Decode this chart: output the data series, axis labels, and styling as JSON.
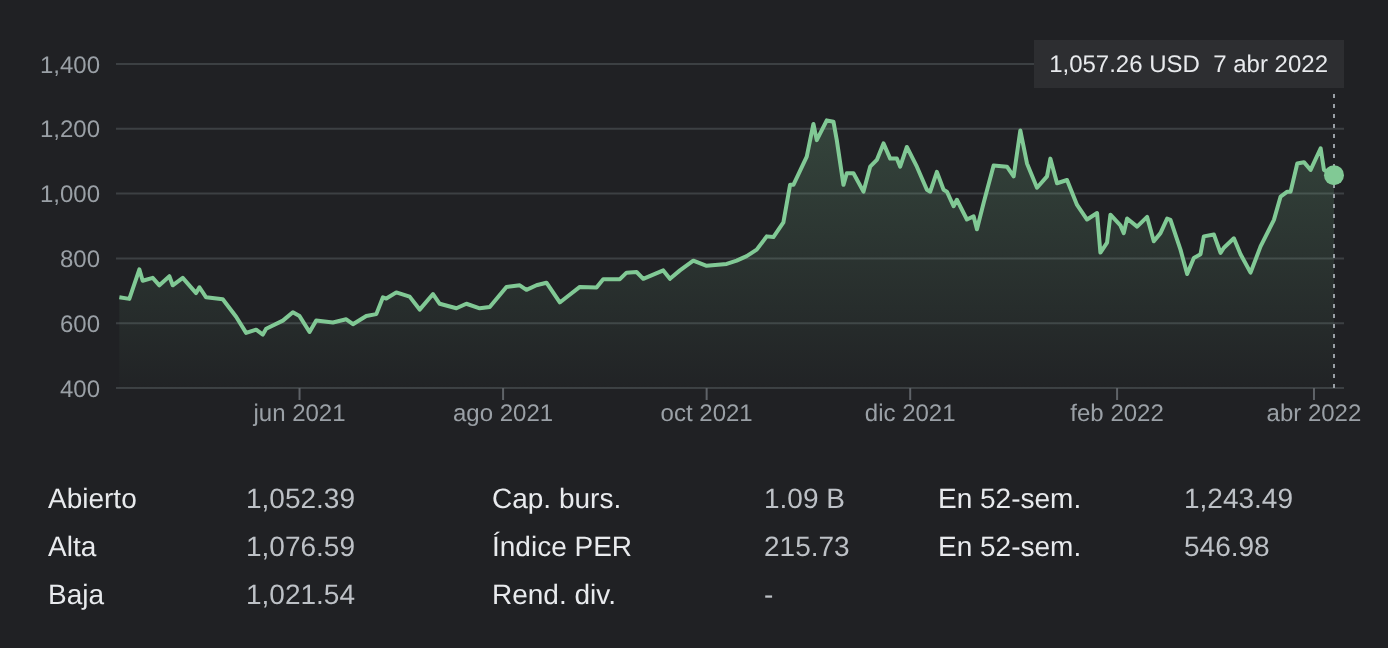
{
  "chart_data": {
    "type": "area",
    "x": [
      "2021-04-08",
      "2021-04-11",
      "2021-04-14",
      "2021-04-15",
      "2021-04-18",
      "2021-04-20",
      "2021-04-23",
      "2021-04-24",
      "2021-04-27",
      "2021-05-01",
      "2021-05-02",
      "2021-05-04",
      "2021-05-09",
      "2021-05-13",
      "2021-05-16",
      "2021-05-19",
      "2021-05-21",
      "2021-05-22",
      "2021-05-27",
      "2021-05-30",
      "2021-06-01",
      "2021-06-04",
      "2021-06-06",
      "2021-06-11",
      "2021-06-15",
      "2021-06-17",
      "2021-06-21",
      "2021-06-24",
      "2021-06-26",
      "2021-06-27",
      "2021-06-30",
      "2021-07-04",
      "2021-07-07",
      "2021-07-11",
      "2021-07-13",
      "2021-07-18",
      "2021-07-21",
      "2021-07-25",
      "2021-07-28",
      "2021-08-02",
      "2021-08-06",
      "2021-08-08",
      "2021-08-11",
      "2021-08-14",
      "2021-08-18",
      "2021-08-20",
      "2021-08-24",
      "2021-08-29",
      "2021-08-31",
      "2021-09-05",
      "2021-09-07",
      "2021-09-10",
      "2021-09-12",
      "2021-09-18",
      "2021-09-20",
      "2021-09-23",
      "2021-09-27",
      "2021-10-01",
      "2021-10-07",
      "2021-10-10",
      "2021-10-13",
      "2021-10-16",
      "2021-10-19",
      "2021-10-21",
      "2021-10-24",
      "2021-10-26",
      "2021-10-27",
      "2021-10-31",
      "2021-11-02",
      "2021-11-03",
      "2021-11-06",
      "2021-11-08",
      "2021-11-09",
      "2021-11-11",
      "2021-11-12",
      "2021-11-14",
      "2021-11-17",
      "2021-11-19",
      "2021-11-21",
      "2021-11-23",
      "2021-11-25",
      "2021-11-27",
      "2021-11-28",
      "2021-11-30",
      "2021-12-03",
      "2021-12-06",
      "2021-12-07",
      "2021-12-09",
      "2021-12-11",
      "2021-12-12",
      "2021-12-14",
      "2021-12-15",
      "2021-12-18",
      "2021-12-20",
      "2021-12-21",
      "2021-12-23",
      "2021-12-26",
      "2021-12-30",
      "2022-01-01",
      "2022-01-03",
      "2022-01-05",
      "2022-01-08",
      "2022-01-11",
      "2022-01-12",
      "2022-01-14",
      "2022-01-17",
      "2022-01-20",
      "2022-01-23",
      "2022-01-26",
      "2022-01-27",
      "2022-01-29",
      "2022-01-30",
      "2022-02-02",
      "2022-02-03",
      "2022-02-04",
      "2022-02-07",
      "2022-02-10",
      "2022-02-12",
      "2022-02-14",
      "2022-02-16",
      "2022-02-17",
      "2022-02-20",
      "2022-02-22",
      "2022-02-24",
      "2022-02-26",
      "2022-02-27",
      "2022-03-02",
      "2022-03-04",
      "2022-03-05",
      "2022-03-08",
      "2022-03-10",
      "2022-03-13",
      "2022-03-16",
      "2022-03-20",
      "2022-03-22",
      "2022-03-24",
      "2022-03-25",
      "2022-03-27",
      "2022-03-29",
      "2022-03-31",
      "2022-04-03",
      "2022-04-04",
      "2022-04-07"
    ],
    "series": [
      {
        "color": "#81c995",
        "values": [
          680,
          675,
          766,
          731,
          740,
          717,
          745,
          717,
          740,
          693,
          711,
          680,
          674,
          620,
          570,
          580,
          565,
          583,
          608,
          634,
          622,
          573,
          608,
          602,
          612,
          597,
          622,
          628,
          680,
          676,
          695,
          682,
          642,
          690,
          660,
          646,
          660,
          646,
          650,
          712,
          717,
          703,
          717,
          725,
          664,
          680,
          712,
          710,
          736,
          736,
          756,
          758,
          737,
          763,
          737,
          763,
          793,
          777,
          783,
          793,
          807,
          827,
          868,
          866,
          911,
          1027,
          1027,
          1114,
          1215,
          1165,
          1226,
          1222,
          1165,
          1027,
          1063,
          1063,
          1006,
          1083,
          1104,
          1155,
          1108,
          1108,
          1083,
          1144,
          1083,
          1012,
          1006,
          1067,
          1012,
          1006,
          961,
          981,
          920,
          930,
          890,
          971,
          1087,
          1083,
          1053,
          1195,
          1093,
          1018,
          1053,
          1108,
          1032,
          1042,
          965,
          920,
          940,
          818,
          849,
          935,
          902,
          878,
          923,
          898,
          928,
          853,
          878,
          923,
          919,
          827,
          752,
          801,
          813,
          868,
          874,
          817,
          833,
          862,
          813,
          756,
          837,
          919,
          991,
          1006,
          1006,
          1093,
          1097,
          1073,
          1140,
          1073,
          1057
        ]
      }
    ],
    "xlim": [
      "2021-04-07",
      "2022-04-10"
    ],
    "xticks": [
      {
        "value": "2021-06-01",
        "label": "jun 2021"
      },
      {
        "value": "2021-08-01",
        "label": "ago 2021"
      },
      {
        "value": "2021-10-01",
        "label": "oct 2021"
      },
      {
        "value": "2021-12-01",
        "label": "dic 2021"
      },
      {
        "value": "2022-02-01",
        "label": "feb 2022"
      },
      {
        "value": "2022-04-01",
        "label": "abr 2022"
      }
    ],
    "ylim": [
      400,
      1400
    ],
    "yticks": [
      400,
      600,
      800,
      {
        "value": 1000,
        "label": "1,000"
      },
      {
        "value": 1200,
        "label": "1,200"
      },
      {
        "value": 1400,
        "label": "1,400"
      }
    ],
    "grid": "y",
    "ref_lines": [
      {
        "axis": "x",
        "value": "2022-04-07",
        "color": "#9aa0a6",
        "line_style": "dotted"
      }
    ],
    "annotations": [
      "1,057.26 USD  7 abr 2022",
      "Abierto",
      "1,052.39",
      "Cap. burs.",
      "1.09 B",
      "En 52-sem.",
      "1,243.49",
      "Alta",
      "1,076.59",
      "Índice PER",
      "215.73",
      "En 52-sem.",
      "546.98",
      "Baja",
      "1,021.54",
      "Rend. div.",
      "-"
    ]
  }
}
